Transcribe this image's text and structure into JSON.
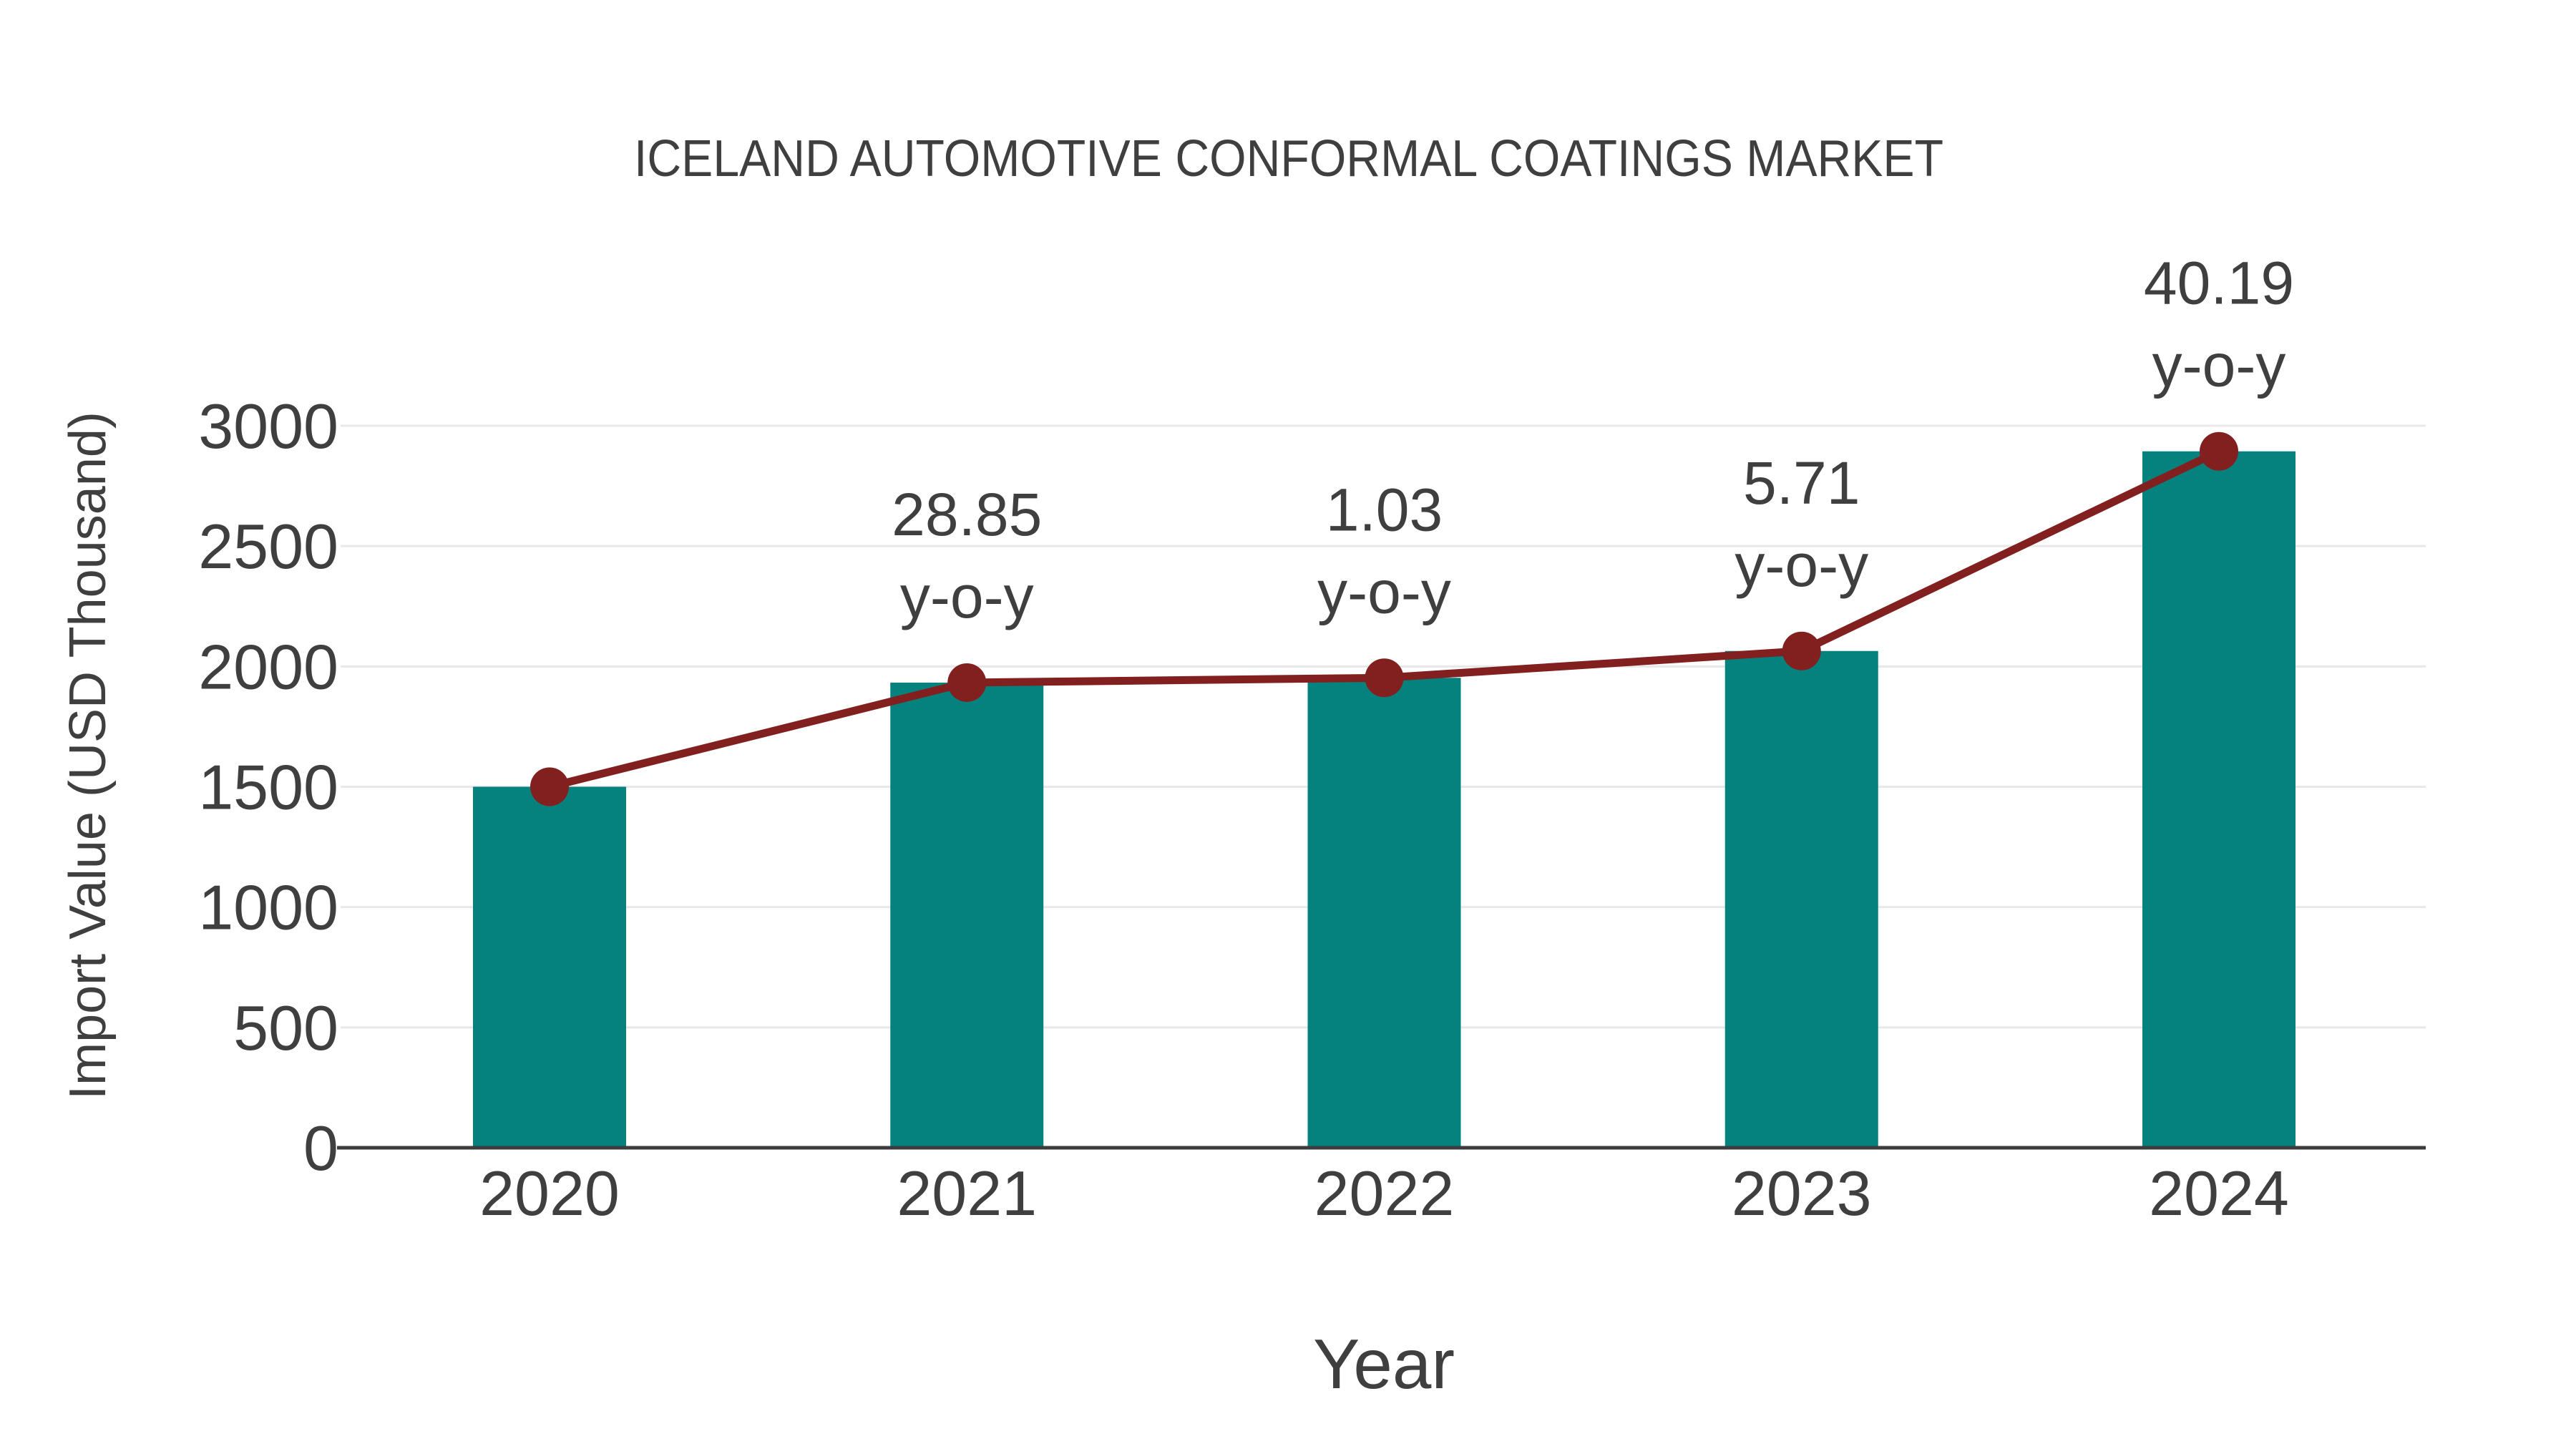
{
  "chart_data": {
    "type": "bar+line",
    "title": "ICELAND AUTOMOTIVE CONFORMAL COATINGS MARKET",
    "xlabel": "Year",
    "ylabel": "Import Value (USD Thousand)",
    "categories": [
      "2020",
      "2021",
      "2022",
      "2023",
      "2024"
    ],
    "series": [
      {
        "name": "Import Value bars",
        "type": "bar",
        "values": [
          1500,
          1932.75,
          1952.66,
          2064.16,
          2893.72
        ]
      },
      {
        "name": "Import Value trend line",
        "type": "line",
        "values": [
          1500,
          1932.75,
          1952.66,
          2064.16,
          2893.72
        ]
      }
    ],
    "yoy_labels": [
      null,
      "28.85",
      "1.03",
      "5.71",
      "40.19"
    ],
    "yoy_suffix": "y-o-y",
    "y_ticks": [
      0,
      500,
      1000,
      1500,
      2000,
      2500,
      3000
    ],
    "y_tick_labels": [
      "0",
      "500",
      "1000",
      "1500",
      "2000",
      "2500",
      "3000"
    ],
    "ylim": [
      0,
      3000
    ],
    "grid": "horizontal",
    "legend": "none",
    "colors": {
      "bar": "#06827E",
      "line": "#821F1F",
      "marker": "#821F1F",
      "grid": "#E8E8E8",
      "axis": "#3C3C3C",
      "text": "#3F3F3F"
    }
  }
}
